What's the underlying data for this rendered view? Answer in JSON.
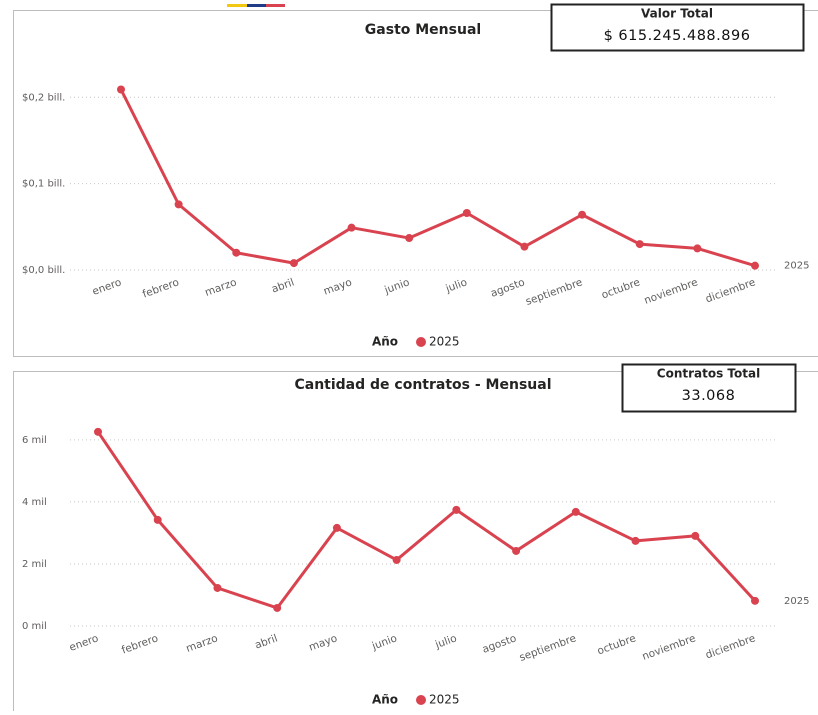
{
  "chart_data": [
    {
      "type": "line",
      "title": "Gasto Mensual",
      "kpi_label": "Valor Total",
      "kpi_value": "$ 615.245.488.896",
      "legend_title": "Año",
      "categories": [
        "enero",
        "febrero",
        "marzo",
        "abril",
        "mayo",
        "junio",
        "julio",
        "agosto",
        "septiembre",
        "octubre",
        "noviembre",
        "diciembre"
      ],
      "series": [
        {
          "name": "2025",
          "color": "#d9434f",
          "values": [
            0.209,
            0.076,
            0.02,
            0.008,
            0.049,
            0.037,
            0.066,
            0.027,
            0.064,
            0.03,
            0.025,
            0.005
          ]
        }
      ],
      "ylim": [
        0,
        0.22
      ],
      "yticks": [
        {
          "value": 0,
          "label": "$0,0 bill."
        },
        {
          "value": 0.1,
          "label": "$0,1 bill."
        },
        {
          "value": 0.2,
          "label": "$0,2 bill."
        }
      ],
      "grid": true
    },
    {
      "type": "line",
      "title": "Cantidad de contratos - Mensual",
      "kpi_label": "Contratos Total",
      "kpi_value": "33.068",
      "legend_title": "Año",
      "categories": [
        "enero",
        "febrero",
        "marzo",
        "abril",
        "mayo",
        "junio",
        "julio",
        "agosto",
        "septiembre",
        "octubre",
        "noviembre",
        "diciembre"
      ],
      "series": [
        {
          "name": "2025",
          "color": "#d9434f",
          "values": [
            6258,
            3419,
            1226,
            581,
            3161,
            2129,
            3742,
            2419,
            3677,
            2742,
            2903,
            811
          ]
        }
      ],
      "ylim": [
        0,
        6800
      ],
      "yticks": [
        {
          "value": 0,
          "label": "0 mil"
        },
        {
          "value": 2000,
          "label": "2 mil"
        },
        {
          "value": 4000,
          "label": "4 mil"
        },
        {
          "value": 6000,
          "label": "6 mil"
        }
      ],
      "grid": true
    }
  ]
}
